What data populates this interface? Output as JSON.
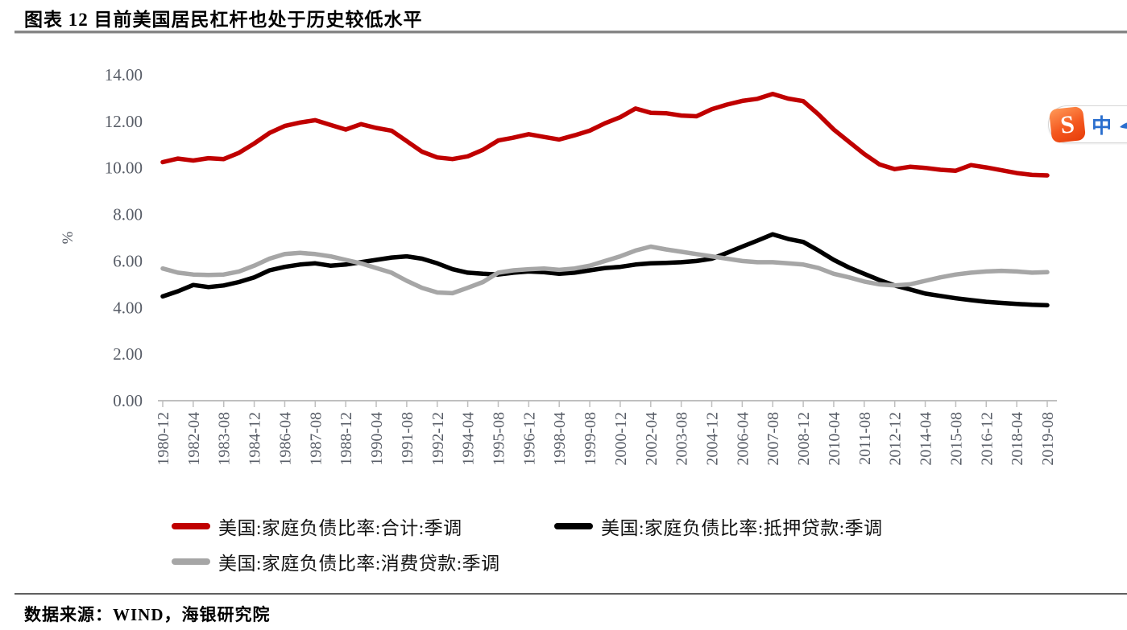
{
  "title": "图表 12 目前美国居民杠杆也处于历史较低水平",
  "source": "数据来源：WIND，海银研究院",
  "plugin": {
    "logo": "S",
    "label": "中"
  },
  "chart_data": {
    "type": "line",
    "title": "图表 12 目前美国居民杠杆也处于历史较低水平",
    "xlabel": "",
    "ylabel": "%",
    "ylim": [
      0,
      14
    ],
    "ytick_labels": [
      "0.00",
      "2.00",
      "4.00",
      "6.00",
      "8.00",
      "10.00",
      "12.00",
      "14.00"
    ],
    "grid": false,
    "legend_position": "bottom",
    "x_tick_labels": [
      "1980-12",
      "1982-04",
      "1983-08",
      "1984-12",
      "1986-04",
      "1987-08",
      "1988-12",
      "1990-04",
      "1991-08",
      "1992-12",
      "1994-04",
      "1995-08",
      "1996-12",
      "1998-04",
      "1999-08",
      "2000-12",
      "2002-04",
      "2003-08",
      "2004-12",
      "2006-04",
      "2007-08",
      "2008-12",
      "2010-04",
      "2011-08",
      "2012-12",
      "2014-04",
      "2015-08",
      "2016-12",
      "2018-04",
      "2019-08"
    ],
    "x": [
      "1980-12",
      "1981-08",
      "1982-04",
      "1982-12",
      "1983-08",
      "1984-04",
      "1984-12",
      "1985-08",
      "1986-04",
      "1986-12",
      "1987-08",
      "1988-04",
      "1988-12",
      "1989-08",
      "1990-04",
      "1990-12",
      "1991-08",
      "1992-04",
      "1992-12",
      "1993-08",
      "1994-04",
      "1994-12",
      "1995-08",
      "1996-04",
      "1996-12",
      "1997-08",
      "1998-04",
      "1998-12",
      "1999-08",
      "2000-04",
      "2000-12",
      "2001-08",
      "2002-04",
      "2002-12",
      "2003-08",
      "2004-04",
      "2004-12",
      "2005-08",
      "2006-04",
      "2006-12",
      "2007-08",
      "2008-04",
      "2008-12",
      "2009-08",
      "2010-04",
      "2010-12",
      "2011-08",
      "2012-04",
      "2012-12",
      "2013-08",
      "2014-04",
      "2014-12",
      "2015-08",
      "2016-04",
      "2016-12",
      "2017-08",
      "2018-04",
      "2018-12",
      "2019-08"
    ],
    "series": [
      {
        "name": "美国:家庭负债比率:合计:季调",
        "color": "#c00000",
        "values": [
          10.25,
          10.4,
          10.32,
          10.42,
          10.38,
          10.65,
          11.05,
          11.5,
          11.8,
          11.95,
          12.05,
          11.85,
          11.65,
          11.88,
          11.72,
          11.6,
          11.15,
          10.7,
          10.45,
          10.38,
          10.5,
          10.78,
          11.18,
          11.3,
          11.45,
          11.33,
          11.22,
          11.4,
          11.6,
          11.92,
          12.18,
          12.55,
          12.37,
          12.35,
          12.25,
          12.22,
          12.52,
          12.72,
          12.88,
          12.97,
          13.18,
          12.98,
          12.87,
          12.3,
          11.65,
          11.12,
          10.6,
          10.15,
          9.95,
          10.05,
          10.0,
          9.92,
          9.88,
          10.12,
          10.02,
          9.9,
          9.78,
          9.7,
          9.68
        ]
      },
      {
        "name": "美国:家庭负债比率:抵押贷款:季调",
        "color": "#000000",
        "values": [
          4.48,
          4.7,
          4.97,
          4.88,
          4.95,
          5.1,
          5.3,
          5.6,
          5.75,
          5.85,
          5.9,
          5.8,
          5.85,
          5.95,
          6.05,
          6.15,
          6.2,
          6.1,
          5.9,
          5.65,
          5.5,
          5.45,
          5.42,
          5.5,
          5.55,
          5.52,
          5.45,
          5.5,
          5.6,
          5.7,
          5.75,
          5.85,
          5.9,
          5.92,
          5.95,
          6.0,
          6.1,
          6.35,
          6.62,
          6.88,
          7.15,
          6.95,
          6.82,
          6.45,
          6.05,
          5.72,
          5.45,
          5.18,
          4.95,
          4.78,
          4.6,
          4.5,
          4.4,
          4.32,
          4.25,
          4.2,
          4.16,
          4.12,
          4.1
        ]
      },
      {
        "name": "美国:家庭负债比率:消费贷款:季调",
        "color": "#a6a6a6",
        "values": [
          5.68,
          5.5,
          5.42,
          5.4,
          5.42,
          5.55,
          5.8,
          6.1,
          6.3,
          6.35,
          6.3,
          6.2,
          6.05,
          5.9,
          5.7,
          5.5,
          5.15,
          4.85,
          4.65,
          4.62,
          4.85,
          5.1,
          5.5,
          5.6,
          5.65,
          5.68,
          5.62,
          5.68,
          5.8,
          6.0,
          6.2,
          6.45,
          6.62,
          6.5,
          6.4,
          6.3,
          6.2,
          6.1,
          6.0,
          5.95,
          5.95,
          5.9,
          5.85,
          5.7,
          5.45,
          5.3,
          5.12,
          5.0,
          4.95,
          5.0,
          5.15,
          5.3,
          5.42,
          5.5,
          5.55,
          5.58,
          5.55,
          5.5,
          5.52
        ]
      }
    ]
  }
}
